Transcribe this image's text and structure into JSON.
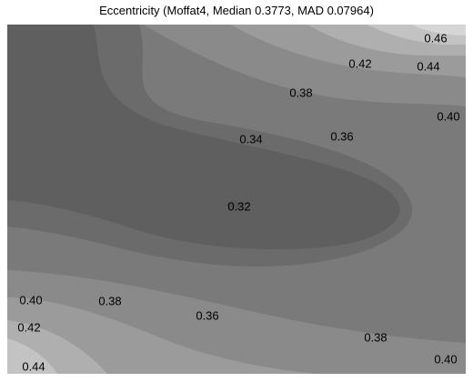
{
  "chart_data": {
    "type": "contour",
    "title": "Eccentricity (Moffat4, Median 0.3773, MAD 0.07964)",
    "xlabel": "",
    "ylabel": "",
    "grid": false,
    "legend": "none",
    "levels": [
      0.32,
      0.34,
      0.36,
      0.38,
      0.4,
      0.42,
      0.44,
      0.46
    ],
    "fill_colors": [
      "#5f5f5f",
      "#6b6b6b",
      "#7a7a7a",
      "#8a8a8a",
      "#9b9b9b",
      "#afafaf",
      "#c3c3c3",
      "#d6d6d6"
    ],
    "contour_labels": [
      {
        "text": "0.46"
      },
      {
        "text": "0.42"
      },
      {
        "text": "0.44"
      },
      {
        "text": "0.38"
      },
      {
        "text": "0.40"
      },
      {
        "text": "0.34"
      },
      {
        "text": "0.36"
      },
      {
        "text": "0.32"
      },
      {
        "text": "0.40"
      },
      {
        "text": "0.38"
      },
      {
        "text": "0.42"
      },
      {
        "text": "0.36"
      },
      {
        "text": "0.38"
      },
      {
        "text": "0.44"
      },
      {
        "text": "0.40"
      }
    ]
  }
}
